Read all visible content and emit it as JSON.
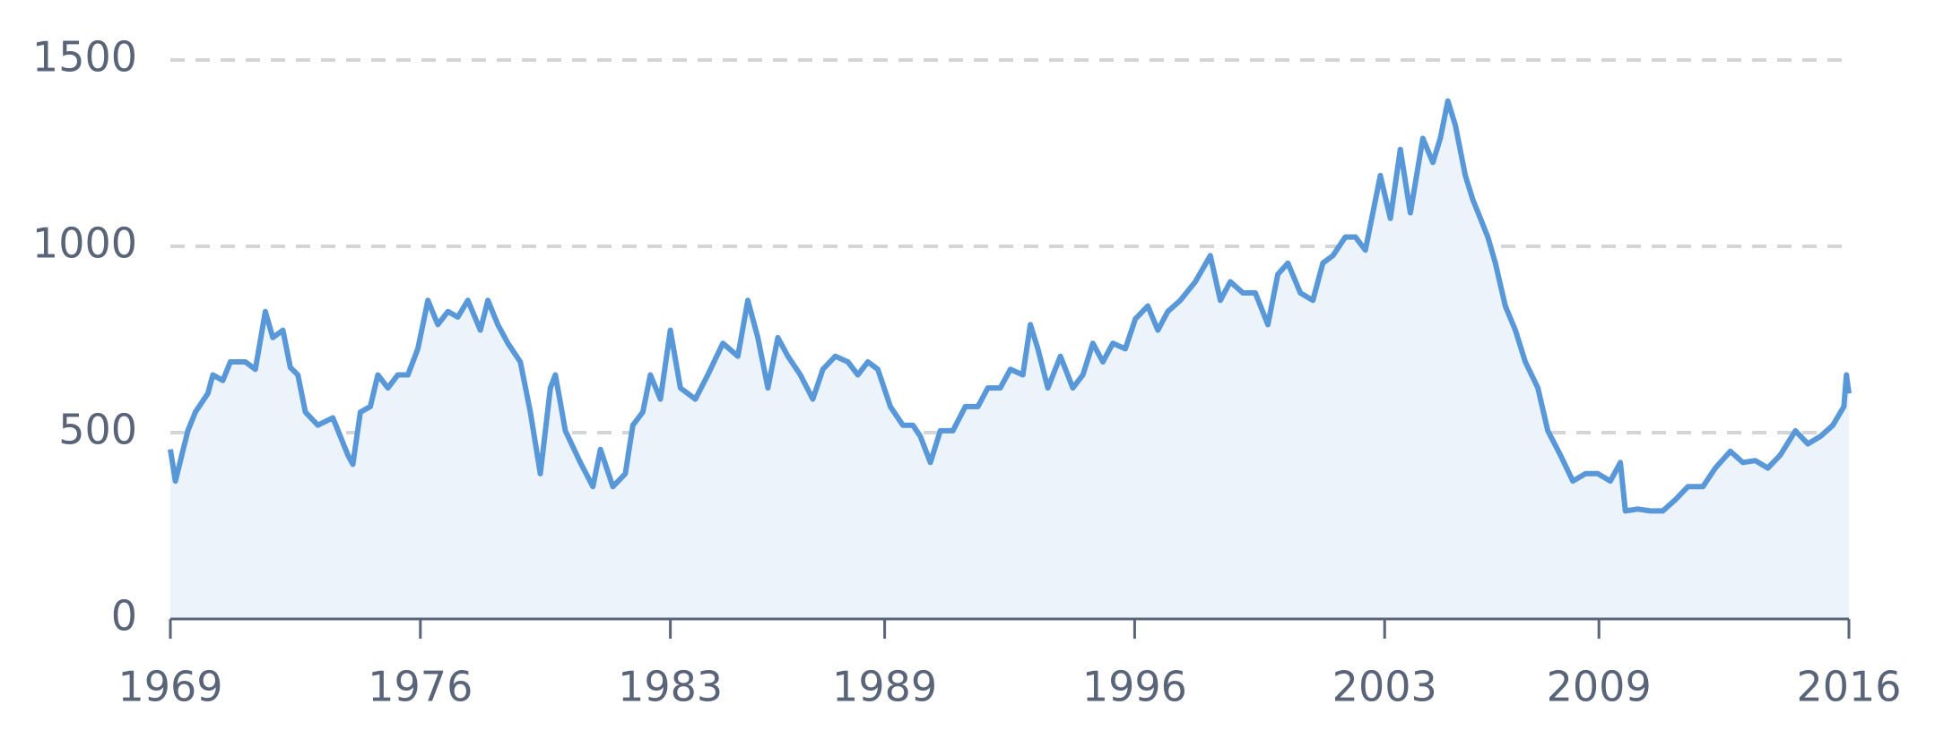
{
  "chart_data": {
    "type": "area",
    "x": [
      1969.0,
      1969.14,
      1969.49,
      1969.7,
      1970.05,
      1970.19,
      1970.47,
      1970.68,
      1971.1,
      1971.38,
      1971.66,
      1971.87,
      1972.15,
      1972.36,
      1972.57,
      1972.78,
      1973.13,
      1973.55,
      1973.76,
      1973.97,
      1974.11,
      1974.32,
      1974.6,
      1974.81,
      1975.09,
      1975.37,
      1975.65,
      1975.93,
      1976.21,
      1976.49,
      1976.77,
      1977.05,
      1977.33,
      1977.68,
      1977.89,
      1978.17,
      1978.45,
      1978.8,
      1979.08,
      1979.36,
      1979.64,
      1979.78,
      1980.06,
      1980.48,
      1980.83,
      1981.04,
      1981.39,
      1981.74,
      1981.95,
      1982.23,
      1982.44,
      1982.72,
      1983.0,
      1983.28,
      1983.7,
      1984.05,
      1984.47,
      1984.89,
      1985.17,
      1985.45,
      1985.73,
      1986.01,
      1986.29,
      1986.64,
      1986.99,
      1987.27,
      1987.62,
      1987.97,
      1988.25,
      1988.53,
      1988.81,
      1989.16,
      1989.51,
      1989.79,
      1990.0,
      1990.28,
      1990.56,
      1990.91,
      1991.26,
      1991.61,
      1991.89,
      1992.24,
      1992.52,
      1992.87,
      1993.08,
      1993.29,
      1993.57,
      1993.92,
      1994.27,
      1994.55,
      1994.83,
      1995.11,
      1995.39,
      1995.74,
      1996.02,
      1996.37,
      1996.65,
      1996.93,
      1997.28,
      1997.7,
      1998.12,
      1998.4,
      1998.68,
      1999.03,
      1999.38,
      1999.73,
      2000.01,
      2000.29,
      2000.64,
      2000.99,
      2001.27,
      2001.55,
      2001.9,
      2002.18,
      2002.46,
      2002.67,
      2002.88,
      2003.16,
      2003.44,
      2003.72,
      2004.07,
      2004.35,
      2004.56,
      2004.77,
      2004.98,
      2005.26,
      2005.47,
      2005.68,
      2005.89,
      2006.1,
      2006.38,
      2006.66,
      2006.94,
      2007.29,
      2007.57,
      2007.92,
      2008.27,
      2008.62,
      2008.97,
      2009.32,
      2009.6,
      2009.74,
      2010.09,
      2010.44,
      2010.79,
      2011.14,
      2011.49,
      2011.91,
      2012.26,
      2012.68,
      2013.03,
      2013.38,
      2013.73,
      2014.08,
      2014.5,
      2014.85,
      2015.2,
      2015.55,
      2015.86,
      2015.93,
      2016.0
    ],
    "values": [
      455,
      370,
      505,
      555,
      605,
      655,
      640,
      690,
      690,
      670,
      825,
      755,
      775,
      675,
      655,
      555,
      520,
      540,
      490,
      440,
      415,
      555,
      570,
      655,
      620,
      655,
      655,
      725,
      855,
      790,
      825,
      810,
      855,
      775,
      855,
      790,
      740,
      690,
      555,
      390,
      620,
      655,
      505,
      420,
      355,
      455,
      355,
      390,
      520,
      555,
      655,
      590,
      775,
      620,
      590,
      655,
      740,
      705,
      855,
      755,
      620,
      755,
      705,
      655,
      590,
      670,
      705,
      690,
      655,
      690,
      670,
      570,
      520,
      520,
      490,
      420,
      505,
      505,
      570,
      570,
      620,
      620,
      670,
      655,
      790,
      725,
      620,
      705,
      620,
      655,
      740,
      690,
      740,
      725,
      805,
      840,
      775,
      825,
      855,
      905,
      975,
      855,
      905,
      875,
      875,
      790,
      925,
      955,
      875,
      855,
      955,
      975,
      1025,
      1025,
      990,
      1090,
      1190,
      1075,
      1260,
      1090,
      1290,
      1225,
      1290,
      1390,
      1325,
      1190,
      1125,
      1075,
      1025,
      955,
      840,
      775,
      690,
      620,
      505,
      440,
      370,
      390,
      390,
      370,
      420,
      290,
      295,
      290,
      290,
      320,
      355,
      355,
      405,
      450,
      420,
      425,
      405,
      440,
      505,
      470,
      490,
      520,
      570,
      655,
      605
    ],
    "color": "#5898d8",
    "fill_color": "#ecf3fb",
    "xlim": [
      1969,
      2016
    ],
    "xticks": [
      1969,
      1976,
      1983,
      1989,
      1996,
      2003,
      2009,
      2016
    ],
    "ylim": [
      0,
      1500
    ],
    "yticks": [
      0,
      500,
      1000,
      1500
    ],
    "grid": true
  }
}
